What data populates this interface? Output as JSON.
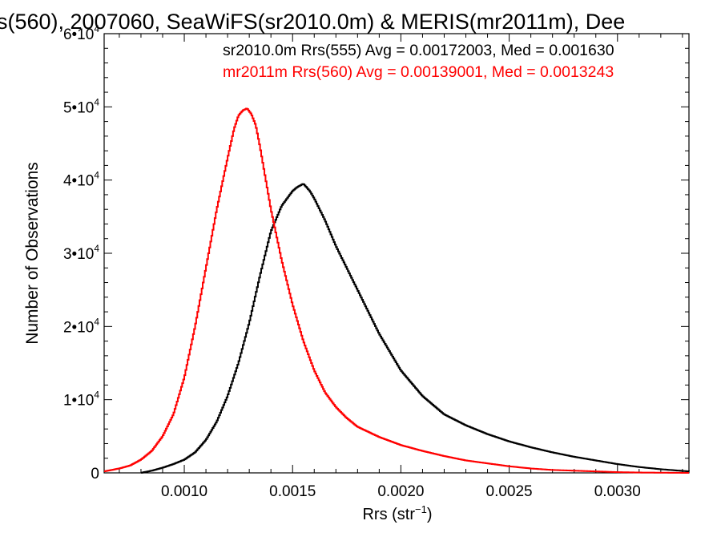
{
  "chart_data": {
    "type": "line",
    "title": "s(560), 2007060, SeaWiFS(sr2010.0m) & MERIS(mr2011m), Dee",
    "xlabel": "Rrs (str",
    "xlabel_sup": "−1",
    "xlabel_end": ")",
    "ylabel": "Number of Observations",
    "xlim": [
      0.00063,
      0.00333
    ],
    "ylim": [
      0,
      60000
    ],
    "step_plot": true,
    "x_ticks": [
      {
        "value": 0.001,
        "label": "0.0010"
      },
      {
        "value": 0.0015,
        "label": "0.0015"
      },
      {
        "value": 0.002,
        "label": "0.0020"
      },
      {
        "value": 0.0025,
        "label": "0.0025"
      },
      {
        "value": 0.003,
        "label": "0.0030"
      }
    ],
    "y_ticks": [
      {
        "value": 0,
        "label": "0",
        "mant": "",
        "exp": ""
      },
      {
        "value": 10000,
        "label": "",
        "mant": "1•10",
        "exp": "4"
      },
      {
        "value": 20000,
        "label": "",
        "mant": "2•10",
        "exp": "4"
      },
      {
        "value": 30000,
        "label": "",
        "mant": "3•10",
        "exp": "4"
      },
      {
        "value": 40000,
        "label": "",
        "mant": "4•10",
        "exp": "4"
      },
      {
        "value": 50000,
        "label": "",
        "mant": "5•10",
        "exp": "4"
      },
      {
        "value": 60000,
        "label": "",
        "mant": "6•10",
        "exp": "4"
      }
    ],
    "annotations": [
      {
        "text": "sr2010.0m Rrs(555) Avg = 0.00172003, Med = 0.001630",
        "color": "#000000"
      },
      {
        "text": "mr2011m Rrs(560) Avg = 0.00139001, Med = 0.0013243",
        "color": "#ff0000"
      }
    ],
    "series": [
      {
        "color": "#000000",
        "x": [
          0.0008,
          0.00085,
          0.0009,
          0.00095,
          0.001,
          0.00105,
          0.0011,
          0.00115,
          0.0012,
          0.00125,
          0.0013,
          0.00135,
          0.0014,
          0.00145,
          0.0015,
          0.00152,
          0.00155,
          0.00158,
          0.0016,
          0.00165,
          0.0017,
          0.00175,
          0.0018,
          0.00185,
          0.0019,
          0.00195,
          0.002,
          0.0021,
          0.0022,
          0.0023,
          0.0024,
          0.0025,
          0.0026,
          0.0027,
          0.0028,
          0.0029,
          0.003,
          0.0031,
          0.0032,
          0.00333
        ],
        "y": [
          0,
          300,
          700,
          1200,
          1800,
          2800,
          4500,
          7000,
          10500,
          15000,
          20500,
          27000,
          33000,
          36500,
          38500,
          39000,
          39500,
          38500,
          37500,
          34500,
          31000,
          28000,
          25000,
          22000,
          19000,
          16500,
          14000,
          10500,
          8000,
          6500,
          5300,
          4300,
          3500,
          2800,
          2200,
          1700,
          1200,
          800,
          500,
          200
        ]
      },
      {
        "color": "#ff0000",
        "x": [
          0.00063,
          0.0007,
          0.00075,
          0.0008,
          0.00085,
          0.0009,
          0.00095,
          0.001,
          0.00105,
          0.0011,
          0.00115,
          0.0012,
          0.00123,
          0.00125,
          0.00127,
          0.00129,
          0.00131,
          0.00133,
          0.00135,
          0.0014,
          0.00145,
          0.0015,
          0.00155,
          0.0016,
          0.00165,
          0.0017,
          0.00175,
          0.0018,
          0.0019,
          0.002,
          0.0021,
          0.0022,
          0.0023,
          0.0024,
          0.0025,
          0.0026,
          0.0027,
          0.0028,
          0.0029,
          0.003,
          0.0031,
          0.00333
        ],
        "y": [
          200,
          600,
          1000,
          1800,
          3000,
          5000,
          8000,
          13000,
          20000,
          28000,
          36000,
          43000,
          47000,
          48800,
          49500,
          49800,
          49000,
          47500,
          44500,
          36000,
          29000,
          23000,
          18000,
          14000,
          11000,
          9000,
          7500,
          6300,
          4900,
          3800,
          3000,
          2300,
          1700,
          1300,
          900,
          600,
          400,
          300,
          200,
          100,
          50,
          0
        ]
      }
    ]
  }
}
